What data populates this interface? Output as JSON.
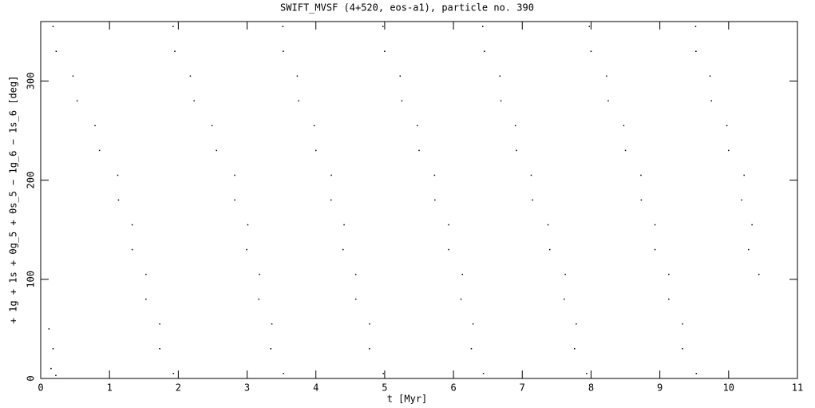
{
  "chart_data": {
    "type": "scatter",
    "title": "SWIFT_MVSF (4+520, eos-a1), particle no. 390",
    "x_label": "t [Myr]",
    "y_label": "+ 1g + 1s + 0g_5 + 0s_5 − 1g_6 − 1s_6 [deg]",
    "xlim": [
      0,
      11
    ],
    "ylim": [
      0,
      360
    ],
    "xticks": [
      0,
      1,
      2,
      3,
      4,
      5,
      6,
      7,
      8,
      9,
      10,
      11
    ],
    "yticks": [
      0,
      100,
      200,
      300
    ],
    "series": [
      {
        "color": "#000000",
        "x": [
          0.12,
          0.18,
          0.15,
          0.22,
          0.18,
          0.225,
          0.47,
          0.53,
          0.79,
          0.855,
          1.12,
          1.13,
          1.33,
          1.33,
          1.53,
          1.53,
          1.73,
          1.73,
          1.93,
          1.925,
          1.95,
          2.175,
          2.23,
          2.49,
          2.555,
          2.82,
          2.82,
          3.01,
          2.995,
          3.18,
          3.17,
          3.36,
          3.345,
          3.53,
          3.52,
          3.525,
          3.73,
          3.75,
          3.975,
          4.0,
          4.225,
          4.22,
          4.41,
          4.395,
          4.58,
          4.58,
          4.78,
          4.78,
          4.98,
          4.975,
          5.0,
          5.225,
          5.25,
          5.475,
          5.5,
          5.725,
          5.73,
          5.93,
          5.93,
          6.13,
          6.11,
          6.285,
          6.26,
          6.435,
          6.425,
          6.45,
          6.675,
          6.69,
          6.9,
          6.915,
          7.13,
          7.15,
          7.375,
          7.4,
          7.625,
          7.61,
          7.785,
          7.76,
          7.935,
          7.975,
          8.0,
          8.225,
          8.25,
          8.475,
          8.5,
          8.725,
          8.73,
          8.93,
          8.93,
          9.13,
          9.13,
          9.33,
          9.33,
          9.53,
          9.52,
          9.525,
          9.73,
          9.75,
          9.975,
          10.0,
          10.225,
          10.19,
          10.34,
          10.29,
          10.44
        ],
        "values": [
          50,
          30,
          10,
          3,
          355,
          330,
          305,
          280,
          255,
          230,
          205,
          180,
          155,
          130,
          105,
          80,
          55,
          30,
          5,
          355,
          330,
          305,
          280,
          255,
          230,
          205,
          180,
          155,
          130,
          105,
          80,
          55,
          30,
          5,
          355,
          330,
          305,
          280,
          255,
          230,
          205,
          180,
          155,
          130,
          105,
          80,
          55,
          30,
          5,
          355,
          330,
          305,
          280,
          255,
          230,
          205,
          180,
          155,
          130,
          105,
          80,
          55,
          30,
          5,
          355,
          330,
          305,
          280,
          255,
          230,
          205,
          180,
          155,
          130,
          105,
          80,
          55,
          30,
          5,
          355,
          330,
          305,
          280,
          255,
          230,
          205,
          180,
          155,
          130,
          105,
          80,
          55,
          30,
          5,
          355,
          330,
          305,
          280,
          255,
          230,
          205,
          180,
          155,
          130,
          105
        ]
      }
    ]
  }
}
